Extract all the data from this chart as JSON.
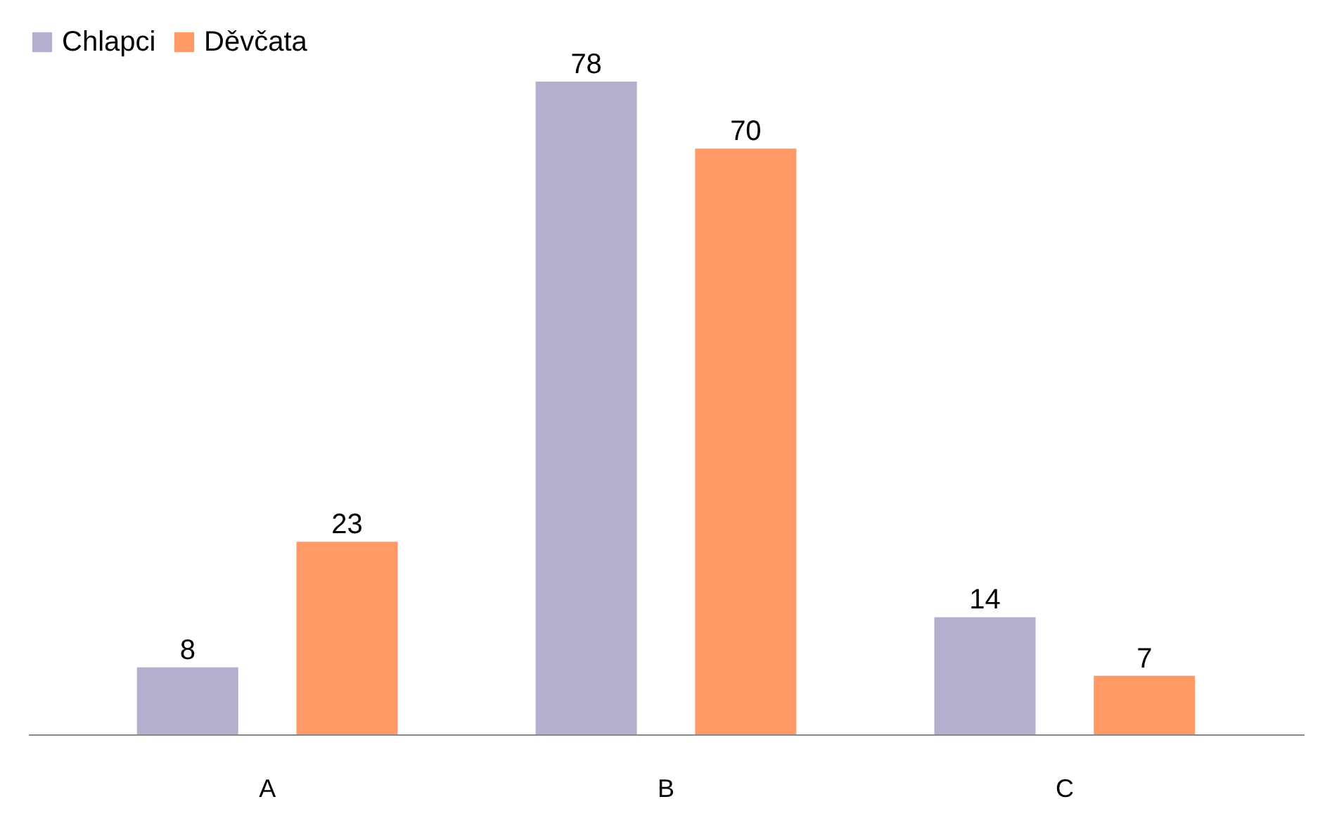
{
  "chart_data": {
    "type": "bar",
    "categories": [
      "A",
      "B",
      "C"
    ],
    "series": [
      {
        "name": "Chlapci",
        "color": "#b4afcd",
        "values": [
          8,
          78,
          14
        ]
      },
      {
        "name": "Děvčata",
        "color": "#ff9966",
        "values": [
          23,
          70,
          7
        ]
      }
    ],
    "data_labels": true,
    "legend": "top",
    "grid": false
  }
}
